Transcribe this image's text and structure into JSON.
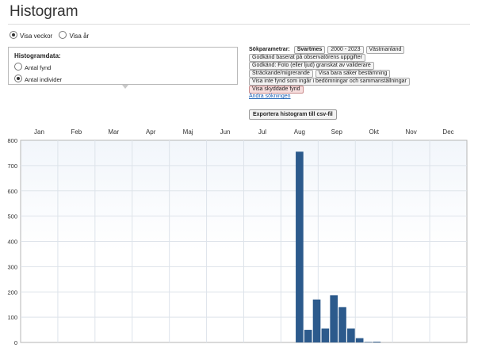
{
  "page": {
    "title": "Histogram"
  },
  "view_mode": {
    "options": [
      {
        "label": "Visa veckor",
        "checked": true
      },
      {
        "label": "Visa år",
        "checked": false
      }
    ]
  },
  "histogram_data": {
    "title": "Histogramdata:",
    "options": [
      {
        "label": "Antal fynd",
        "checked": false
      },
      {
        "label": "Antal individer",
        "checked": true
      }
    ]
  },
  "search_params": {
    "label": "Sökparametrar:",
    "chips": {
      "species": "Svartmes",
      "years": "2000 - 2023",
      "region": "Västmanland",
      "f1": "Godkänd baserat på observatörens uppgifter",
      "f2": "Godkänd: Foto (eller ljud) granskat av validerare",
      "f3": "Sträckande/migrerande",
      "f4": "Visa bara säker bestämning",
      "f5": "Visa inte fynd som ingår i bedömningar och sammanställningar",
      "f6": "Visa skyddade fynd"
    },
    "change_link": "Ändra sökningen",
    "export_button": "Exportera histogram till csv-fil"
  },
  "colors": {
    "bar": "#2c5a8c",
    "accent_link": "#1a5fb4",
    "warn_chip": "#f7dede"
  },
  "chart_data": {
    "type": "bar",
    "month_labels": [
      "Jan",
      "Feb",
      "Mar",
      "Apr",
      "Maj",
      "Jun",
      "Jul",
      "Aug",
      "Sep",
      "Okt",
      "Nov",
      "Dec"
    ],
    "x_unit": "week",
    "weeks": [
      33,
      34,
      35,
      36,
      37,
      38,
      39,
      40,
      41,
      42
    ],
    "values": [
      755,
      50,
      170,
      55,
      187,
      140,
      55,
      17,
      2,
      3
    ],
    "ylim": [
      0,
      800
    ],
    "yticks": [
      0,
      100,
      200,
      300,
      400,
      500,
      600,
      700,
      800
    ],
    "grid": true
  }
}
